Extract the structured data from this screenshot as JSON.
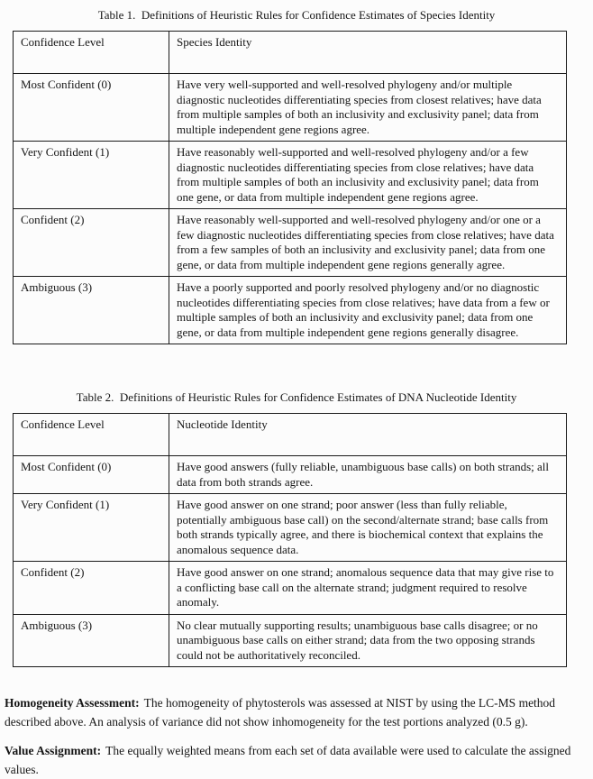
{
  "table1": {
    "title": "Table 1.  Definitions of Heuristic Rules for Confidence Estimates of Species Identity",
    "headers": [
      "Confidence Level",
      "Species Identity"
    ],
    "rows": [
      {
        "level": "Most Confident (0)",
        "description": "Have very well-supported and well-resolved phylogeny and/or multiple diagnostic nucleotides differentiating species from closest relatives; have data from multiple samples of both an inclusivity and exclusivity panel; data from multiple independent gene regions agree."
      },
      {
        "level": "Very Confident (1)",
        "description": "Have reasonably well-supported and well-resolved phylogeny and/or a few diagnostic nucleotides differentiating species from close relatives; have data from multiple samples of both an inclusivity and exclusivity panel; data from one gene, or data from multiple independent gene regions agree."
      },
      {
        "level": "Confident (2)",
        "description": "Have reasonably well-supported and well-resolved phylogeny and/or one or a few diagnostic nucleotides differentiating species from close relatives; have data from a few samples of both an inclusivity and exclusivity panel; data from one gene, or data from multiple independent gene regions generally agree."
      },
      {
        "level": "Ambiguous (3)",
        "description": "Have a poorly supported and poorly resolved phylogeny and/or no diagnostic nucleotides differentiating species from close relatives; have data from a few or multiple samples of both an inclusivity and exclusivity panel; data from one gene, or data from multiple independent gene regions generally disagree."
      }
    ]
  },
  "table2": {
    "title": "Table 2.  Definitions of Heuristic Rules for Confidence Estimates of DNA Nucleotide Identity",
    "headers": [
      "Confidence Level",
      "Nucleotide Identity"
    ],
    "rows": [
      {
        "level": "Most Confident (0)",
        "description": "Have good answers (fully reliable, unambiguous base calls) on both strands; all data from both strands agree."
      },
      {
        "level": "Very Confident (1)",
        "description": "Have good answer on one strand; poor answer (less than fully reliable, potentially ambiguous base call) on the second/alternate strand; base calls from both strands typically agree, and there is biochemical context that explains the anomalous sequence data."
      },
      {
        "level": "Confident (2)",
        "description": "Have good answer on one strand; anomalous sequence data that may give rise to a conflicting base call on the alternate strand; judgment required to resolve anomaly."
      },
      {
        "level": "Ambiguous (3)",
        "description": "No clear mutually supporting results; unambiguous base calls disagree; or no unambiguous base calls on either strand; data from the two opposing strands could not be authoritatively reconciled."
      }
    ]
  },
  "notes": [
    {
      "label": "Homogeneity Assessment:",
      "text": "The homogeneity of phytosterols was assessed at NIST by using the LC-MS method described above.  An analysis of variance did not show inhomogeneity for the test portions analyzed (0.5 g)."
    },
    {
      "label": "Value Assignment:",
      "text": "The equally weighted means from each set of data available were used to calculate the assigned values."
    }
  ]
}
